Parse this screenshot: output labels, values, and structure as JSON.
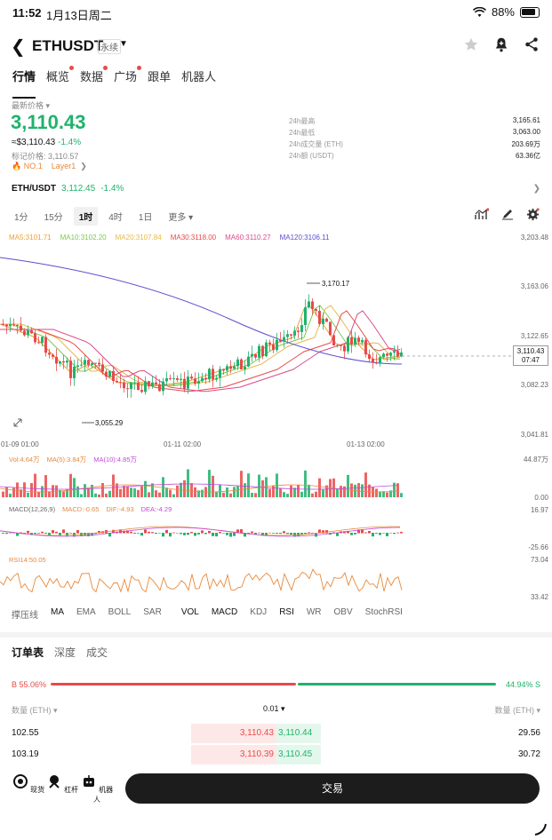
{
  "status": {
    "time": "11:52",
    "date": "1月13日周二",
    "battery": "88%"
  },
  "header": {
    "pair": "ETHUSDT",
    "perp": "永续"
  },
  "nav": [
    "行情",
    "概览",
    "数据",
    "广场",
    "跟单",
    "机器人"
  ],
  "price": {
    "label": "最新价格",
    "last": "3,110.43",
    "usd": "≈$3,110.43",
    "change": "-1.4%",
    "mark": "标记价格: 3,110.57",
    "rank": "NO.1",
    "layer": "Layer1"
  },
  "stats": [
    {
      "k": "24h最高",
      "v": "3,165.61"
    },
    {
      "k": "24h最低",
      "v": "3,063.00"
    },
    {
      "k": "24h成交量 (ETH)",
      "v": "203.69万"
    },
    {
      "k": "24h额 (USDT)",
      "v": "63.36亿"
    }
  ],
  "spot": {
    "sym": "ETH/USDT",
    "price": "3,112.45",
    "change": "-1.4%"
  },
  "intervals": [
    "1分",
    "15分",
    "1时",
    "4时",
    "1日",
    "更多"
  ],
  "ma_legend": [
    {
      "t": "MA5:3101.71",
      "c": "#f0a030"
    },
    {
      "t": "MA10:3102.20",
      "c": "#7cc94f"
    },
    {
      "t": "MA20:3107.84",
      "c": "#e6b84a"
    },
    {
      "t": "MA30:3118.00",
      "c": "#e84a4a"
    },
    {
      "t": "MA60:3110.27",
      "c": "#d94a8c"
    },
    {
      "t": "MA120:3106.11",
      "c": "#5a4fcf"
    }
  ],
  "axis": [
    "3,203.48",
    "3,163.06",
    "3,122.65",
    "3,082.23",
    "3,041.81"
  ],
  "current_box": {
    "price": "3,110.43",
    "countdown": "07:47"
  },
  "annotations": {
    "high": "3,170.17",
    "low": "3,055.29"
  },
  "time_axis": [
    "01-09 01:00",
    "01-11 02:00",
    "01-13 02:00"
  ],
  "vol_legend": [
    {
      "t": "Vol:4.64万",
      "c": "#e8893a"
    },
    {
      "t": "MA(5):3.84万",
      "c": "#e8893a"
    },
    {
      "t": "MA(10):4.85万",
      "c": "#c04ad9"
    }
  ],
  "vol_axis": [
    "44.87万",
    "0.00"
  ],
  "macd_legend": [
    {
      "t": "MACD(12,26,9)",
      "c": "#666"
    },
    {
      "t": "MACD:-0.65",
      "c": "#e8893a"
    },
    {
      "t": "DIF:-4.93",
      "c": "#e8893a"
    },
    {
      "t": "DEA:-4.29",
      "c": "#c04ad9"
    }
  ],
  "macd_axis": [
    "16.97",
    "-25.66"
  ],
  "rsi_legend": {
    "t": "RSI14:50.05",
    "c": "#e8893a"
  },
  "rsi_axis": [
    "73.04",
    "33.42"
  ],
  "indicators": [
    "撑压线",
    "MA",
    "EMA",
    "BOLL",
    "SAR",
    "VOL",
    "MACD",
    "KDJ",
    "RSI",
    "WR",
    "OBV",
    "StochRSI"
  ],
  "orderbook": {
    "tabs": [
      "订单表",
      "深度",
      "成交"
    ],
    "buy_ratio": "B 55.06%",
    "sell_ratio": "44.94% S",
    "buy_frac": 0.5506,
    "head_left": "数量 (ETH)",
    "head_mid": "0.01",
    "head_right": "数量 (ETH)",
    "rows": [
      {
        "bq": "102.55",
        "bp": "3,110.43",
        "ap": "3,110.44",
        "aq": "29.56"
      },
      {
        "bq": "103.19",
        "bp": "3,110.39",
        "ap": "3,110.45",
        "aq": "30.72"
      }
    ]
  },
  "bottom": {
    "items": [
      "现货",
      "杠杆",
      "机器人"
    ],
    "trade": "交易"
  }
}
